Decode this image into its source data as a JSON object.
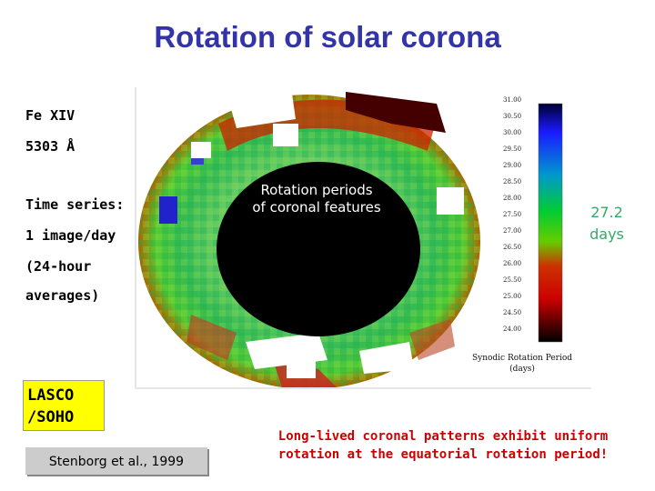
{
  "title": "Rotation of solar corona",
  "left_notes": {
    "line_instrument": "Fe XIV",
    "line_wavelength": "5303 Å",
    "time_series": "Time series:",
    "cadence": "1 image/day",
    "averaging_1": "(24-hour",
    "averaging_2": "averages)"
  },
  "figure": {
    "center_label_1": "Rotation periods",
    "center_label_2": "of coronal features",
    "scale_ticks": [
      "31.00",
      "30.50",
      "30.00",
      "29.50",
      "29.00",
      "28.50",
      "28.00",
      "27.50",
      "27.00",
      "26.50",
      "26.00",
      "25.50",
      "25.00",
      "24.50",
      "24.00"
    ],
    "scale_title_1": "Synodic Rotation Period",
    "scale_title_2": "(days)",
    "colors": {
      "high": "#0000cc",
      "mid": "#00cc33",
      "low": "#cc0000",
      "min": "#000000"
    }
  },
  "side_value_1": "27.2",
  "side_value_2": "days",
  "lasco_1": "LASCO",
  "lasco_2": "/SOHO",
  "reference": "Stenborg et al., 1999",
  "conclusion_1": "Long-lived coronal patterns exhibit uniform",
  "conclusion_2": "rotation at the equatorial rotation period!"
}
